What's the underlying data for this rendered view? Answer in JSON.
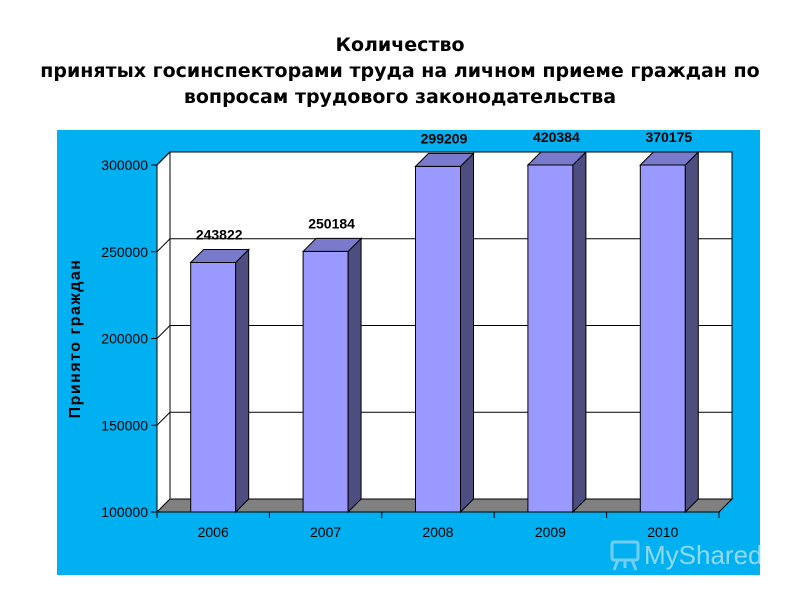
{
  "title_lines": [
    "Количество",
    "принятых госинспекторами труда на личном приеме граждан по",
    "вопросам трудового законодательства"
  ],
  "chart_data": {
    "type": "bar",
    "title": "Количество принятых госинспекторами труда на личном приеме граждан по вопросам трудового законодательства",
    "xlabel": "",
    "ylabel": "Принято граждан",
    "categories": [
      "2006",
      "2007",
      "2008",
      "2009",
      "2010"
    ],
    "values": [
      243822,
      250184,
      299209,
      420384,
      370175
    ],
    "data_labels": [
      "243822",
      "250184",
      "299209",
      "420384",
      "370175"
    ],
    "ylim": [
      100000,
      300000
    ],
    "yticks": [
      100000,
      150000,
      200000,
      250000,
      300000
    ],
    "ytick_labels": [
      "100000",
      "150000",
      "200000",
      "250000",
      "300000"
    ],
    "grid": true,
    "three_d": true,
    "legend": "none",
    "colors": {
      "background": "#00b0f0",
      "plot_area": "#ffffff",
      "bar_front": "#9999ff",
      "bar_side": "#4d4d80",
      "bar_top": "#7a7acc",
      "floor": "#808080",
      "grid": "#000000"
    }
  },
  "watermark": {
    "text": "MyShared",
    "icon": "presentation-board-icon"
  }
}
